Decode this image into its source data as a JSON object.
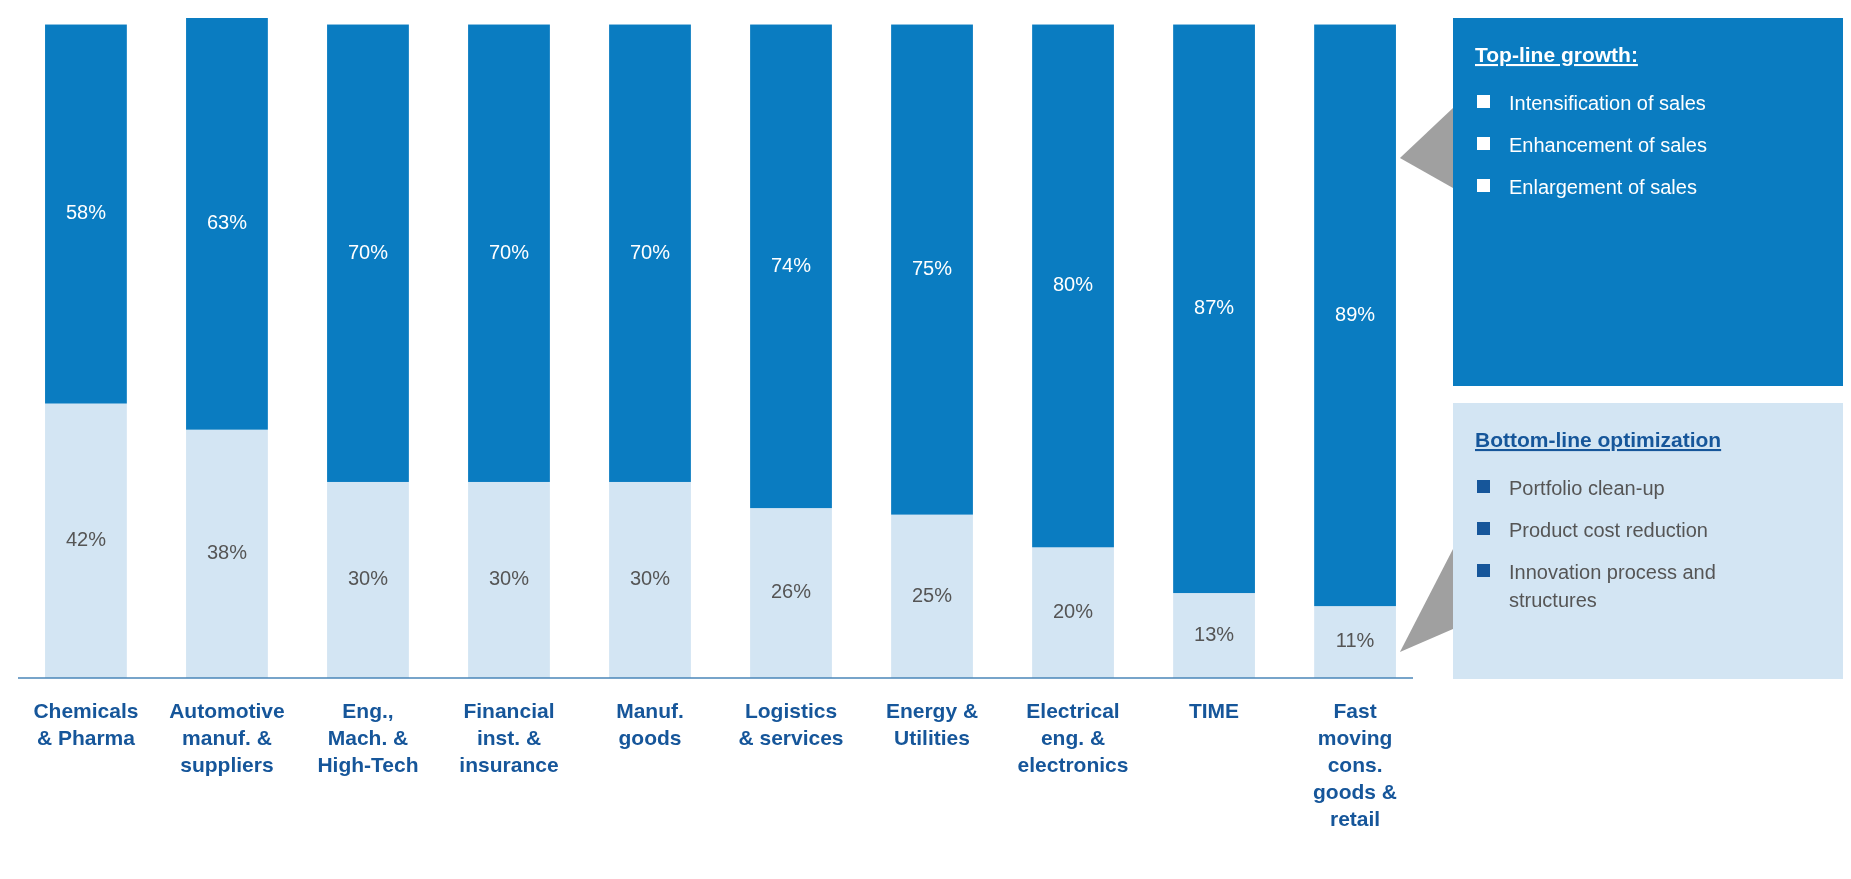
{
  "chart_data": {
    "type": "bar",
    "stacked": true,
    "legend": "right",
    "categories": [
      "Chemicals & Pharma",
      "Automotive manuf. & suppliers",
      "Eng., Mach. & High-Tech",
      "Financial inst. & insurance",
      "Manuf. goods",
      "Logistics & services",
      "Energy & Utilities",
      "Electrical eng. & electronics",
      "TIME",
      "Fast moving cons. goods & retail"
    ],
    "series": [
      {
        "name": "Bottom-line optimization",
        "color": "#d3e5f3",
        "values": [
          42,
          38,
          30,
          30,
          30,
          26,
          25,
          20,
          13,
          11
        ],
        "value_labels": [
          "42%",
          "38%",
          "30%",
          "30%",
          "30%",
          "26%",
          "25%",
          "20%",
          "13%",
          "11%"
        ]
      },
      {
        "name": "Top-line growth:",
        "color": "#0a7cc1",
        "values": [
          58,
          63,
          70,
          70,
          70,
          74,
          75,
          80,
          87,
          89
        ],
        "value_labels": [
          "58%",
          "63%",
          "70%",
          "70%",
          "70%",
          "74%",
          "75%",
          "80%",
          "87%",
          "89%"
        ]
      }
    ],
    "annotations": [
      "Portfolio clean-up",
      "Product cost reduction",
      "Innovation process and structures",
      "Intensification of sales",
      "Enhancement of sales",
      "Enlargement of sales"
    ]
  }
}
